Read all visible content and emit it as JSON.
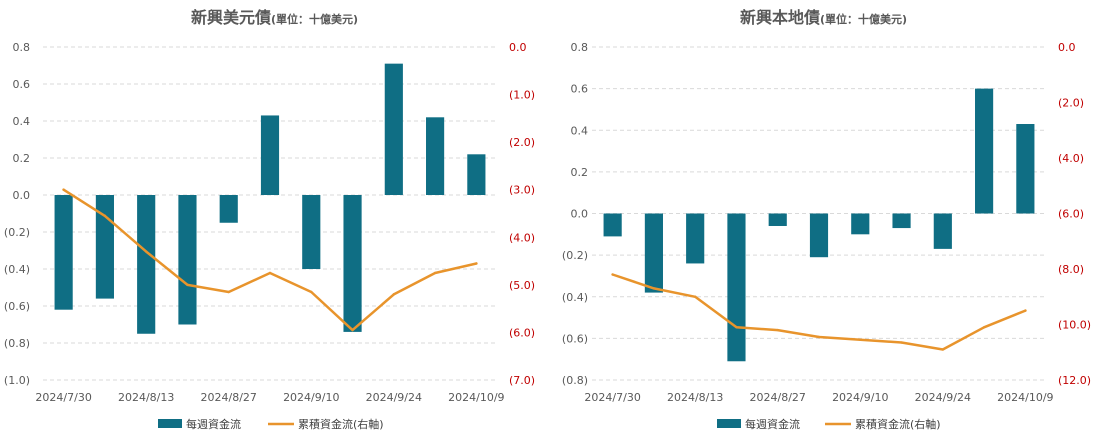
{
  "charts": [
    {
      "title": "新興美元債",
      "unit_note": "(單位：十億美元)",
      "legend": {
        "bars": "每週資金流",
        "line": "累積資金流(右軸)"
      },
      "colors": {
        "bars": "#0f6e84",
        "line": "#e8942c",
        "right_axis_text": "#c00000",
        "left_axis_text": "#595959",
        "grid": "#d9d9d9"
      }
    },
    {
      "title": "新興本地債",
      "unit_note": "(單位：十億美元)",
      "legend": {
        "bars": "每週資金流",
        "line": "累積資金流(右軸)"
      },
      "colors": {
        "bars": "#0f6e84",
        "line": "#e8942c",
        "right_axis_text": "#c00000",
        "left_axis_text": "#595959",
        "grid": "#d9d9d9"
      }
    }
  ],
  "chart_data": [
    {
      "type": "bar",
      "title": "新興美元債(單位：十億美元)",
      "x_tick_labels": [
        "2024/7/30",
        "2024/8/13",
        "2024/8/27",
        "2024/9/10",
        "2024/9/24",
        "2024/10/9"
      ],
      "y_left_ticks": [
        "0.8",
        "0.6",
        "0.4",
        "0.2",
        "0.0",
        "(0.2)",
        "(0.4)",
        "(0.6)",
        "(0.8)",
        "(1.0)"
      ],
      "y_right_ticks": [
        "0.0",
        "(1.0)",
        "(2.0)",
        "(3.0)",
        "(4.0)",
        "(5.0)",
        "(6.0)",
        "(7.0)"
      ],
      "ylim_left": [
        -1.0,
        0.8
      ],
      "ylim_right": [
        -7.0,
        0.0
      ],
      "grid": true,
      "legend_position": "bottom",
      "series": [
        {
          "name": "每週資金流",
          "type": "bar",
          "axis": "left",
          "values": [
            -0.62,
            -0.56,
            -0.75,
            -0.7,
            -0.15,
            0.43,
            -0.4,
            -0.74,
            0.71,
            0.42,
            0.22
          ]
        },
        {
          "name": "累積資金流(右軸)",
          "type": "line",
          "axis": "right",
          "values": [
            -3.0,
            -3.55,
            -4.3,
            -5.0,
            -5.15,
            -4.75,
            -5.15,
            -5.95,
            -5.2,
            -4.75,
            -4.55
          ]
        }
      ]
    },
    {
      "type": "bar",
      "title": "新興本地債(單位：十億美元)",
      "x_tick_labels": [
        "2024/7/30",
        "2024/8/13",
        "2024/8/27",
        "2024/9/10",
        "2024/9/24",
        "2024/10/9"
      ],
      "y_left_ticks": [
        "0.8",
        "0.6",
        "0.4",
        "0.2",
        "0.0",
        "(0.2)",
        "(0.4)",
        "(0.6)",
        "(0.8)"
      ],
      "y_right_ticks": [
        "0.0",
        "(2.0)",
        "(4.0)",
        "(6.0)",
        "(8.0)",
        "(10.0)",
        "(12.0)"
      ],
      "ylim_left": [
        -0.8,
        0.8
      ],
      "ylim_right": [
        -12.0,
        0.0
      ],
      "grid": true,
      "legend_position": "bottom",
      "series": [
        {
          "name": "每週資金流",
          "type": "bar",
          "axis": "left",
          "values": [
            -0.11,
            -0.38,
            -0.24,
            -0.71,
            -0.06,
            -0.21,
            -0.1,
            -0.07,
            -0.17,
            0.6,
            0.43
          ]
        },
        {
          "name": "累積資金流(右軸)",
          "type": "line",
          "axis": "right",
          "values": [
            -8.2,
            -8.7,
            -9.0,
            -10.1,
            -10.2,
            -10.45,
            -10.55,
            -10.65,
            -10.9,
            -10.1,
            -9.5
          ]
        }
      ]
    }
  ]
}
